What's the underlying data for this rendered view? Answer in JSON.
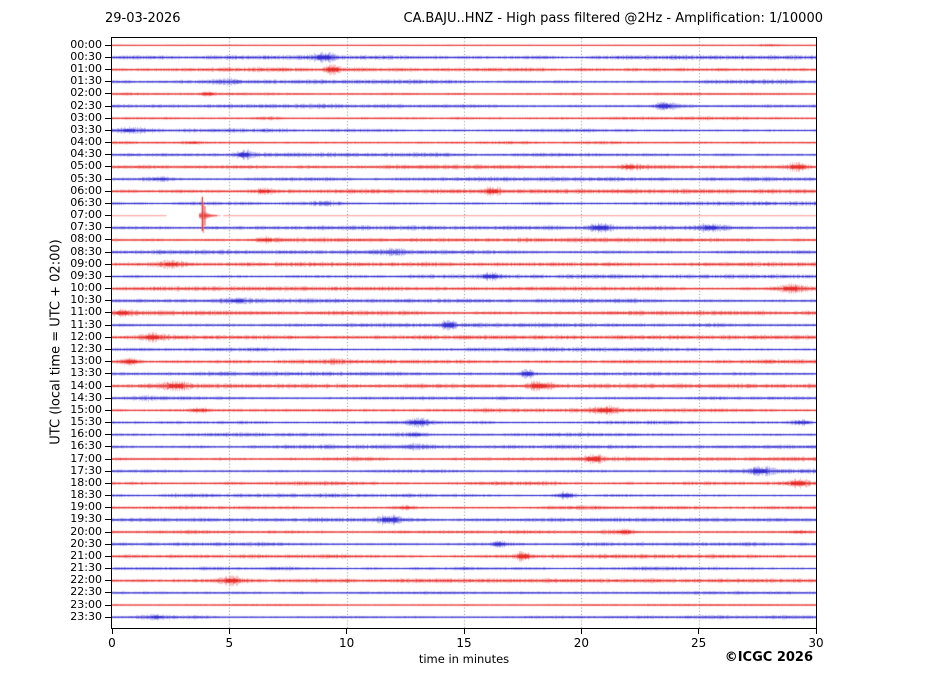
{
  "header": {
    "date": "29-03-2026",
    "title": "CA.BAJU..HNZ - High pass filtered @2Hz - Amplification: 1/10000"
  },
  "axes": {
    "y_label": "UTC (local time = UTC + 02:00)",
    "x_label": "time in minutes",
    "x_ticks": [
      "0",
      "5",
      "10",
      "15",
      "20",
      "25",
      "30"
    ]
  },
  "footer": {
    "copyright": "©ICGC 2026"
  },
  "chart_data": {
    "type": "helicorder-seismogram",
    "station": "CA.BAJU..HNZ",
    "filter": "High pass filtered @2Hz",
    "amplification": "1/10000",
    "date": "29-03-2026",
    "timezone_note": "UTC (local time = UTC + 02:00)",
    "minutes_per_line": 30,
    "x_range_minutes": [
      0,
      30
    ],
    "x_tick_interval_minutes": 5,
    "grid": "vertical dotted lines every 5 minutes",
    "colors": {
      "trace_red": "#e5201c",
      "trace_blue": "#2822ce",
      "event_pink": "#ffabab",
      "event_red": "#e63939",
      "grid": "#8a8a8a",
      "frame": "#000000",
      "background": "#ffffff"
    },
    "event": {
      "row_utc": "07:00",
      "start_minute": 3.7,
      "peak_minute": 3.85,
      "end_minute": 4.45,
      "description": "large clipped spike on the 07:00 trace extending into adjacent lines; rest of the line drawn flat in light pink"
    },
    "rows": [
      {
        "utc": "00:00",
        "color": "red",
        "level": 0.35
      },
      {
        "utc": "00:30",
        "color": "blue",
        "level": 1
      },
      {
        "utc": "01:00",
        "color": "red",
        "level": 1
      },
      {
        "utc": "01:30",
        "color": "blue",
        "level": 1
      },
      {
        "utc": "02:00",
        "color": "red",
        "level": 0.9
      },
      {
        "utc": "02:30",
        "color": "blue",
        "level": 1
      },
      {
        "utc": "03:00",
        "color": "red",
        "level": 0.8
      },
      {
        "utc": "03:30",
        "color": "blue",
        "level": 1
      },
      {
        "utc": "04:00",
        "color": "red",
        "level": 1
      },
      {
        "utc": "04:30",
        "color": "blue",
        "level": 1
      },
      {
        "utc": "05:00",
        "color": "red",
        "level": 1
      },
      {
        "utc": "05:30",
        "color": "blue",
        "level": 1
      },
      {
        "utc": "06:00",
        "color": "red",
        "level": 1.05
      },
      {
        "utc": "06:30",
        "color": "blue",
        "level": 1
      },
      {
        "utc": "07:00",
        "color": "red",
        "level": 0.3,
        "event": true
      },
      {
        "utc": "07:30",
        "color": "blue",
        "level": 1
      },
      {
        "utc": "08:00",
        "color": "red",
        "level": 1.05
      },
      {
        "utc": "08:30",
        "color": "blue",
        "level": 1
      },
      {
        "utc": "09:00",
        "color": "red",
        "level": 1
      },
      {
        "utc": "09:30",
        "color": "blue",
        "level": 1
      },
      {
        "utc": "10:00",
        "color": "red",
        "level": 1
      },
      {
        "utc": "10:30",
        "color": "blue",
        "level": 1
      },
      {
        "utc": "11:00",
        "color": "red",
        "level": 1.05
      },
      {
        "utc": "11:30",
        "color": "blue",
        "level": 1
      },
      {
        "utc": "12:00",
        "color": "red",
        "level": 1
      },
      {
        "utc": "12:30",
        "color": "blue",
        "level": 1
      },
      {
        "utc": "13:00",
        "color": "red",
        "level": 1.1
      },
      {
        "utc": "13:30",
        "color": "blue",
        "level": 1
      },
      {
        "utc": "14:00",
        "color": "red",
        "level": 1.1
      },
      {
        "utc": "14:30",
        "color": "blue",
        "level": 1
      },
      {
        "utc": "15:00",
        "color": "red",
        "level": 1
      },
      {
        "utc": "15:30",
        "color": "blue",
        "level": 1
      },
      {
        "utc": "16:00",
        "color": "blue",
        "level": 1
      },
      {
        "utc": "16:30",
        "color": "blue",
        "level": 1
      },
      {
        "utc": "17:00",
        "color": "red",
        "level": 1
      },
      {
        "utc": "17:30",
        "color": "blue",
        "level": 1
      },
      {
        "utc": "18:00",
        "color": "red",
        "level": 1.05
      },
      {
        "utc": "18:30",
        "color": "blue",
        "level": 1
      },
      {
        "utc": "19:00",
        "color": "red",
        "level": 1
      },
      {
        "utc": "19:30",
        "color": "blue",
        "level": 1
      },
      {
        "utc": "20:00",
        "color": "red",
        "level": 1
      },
      {
        "utc": "20:30",
        "color": "blue",
        "level": 1
      },
      {
        "utc": "21:00",
        "color": "red",
        "level": 1
      },
      {
        "utc": "21:30",
        "color": "blue",
        "level": 0.9
      },
      {
        "utc": "22:00",
        "color": "red",
        "level": 0.95
      },
      {
        "utc": "22:30",
        "color": "blue",
        "level": 0.75
      },
      {
        "utc": "23:00",
        "color": "red",
        "level": 0.45
      },
      {
        "utc": "23:30",
        "color": "blue",
        "level": 0.8
      }
    ],
    "notable_bursts": [
      {
        "row": "00:00",
        "minute": 28.0,
        "strength": 1.3
      },
      {
        "row": "00:30",
        "minute": 9.0,
        "strength": 2
      },
      {
        "row": "01:00",
        "minute": 9.4,
        "strength": 3
      },
      {
        "row": "01:30",
        "minute": 5.0,
        "strength": 1
      },
      {
        "row": "02:00",
        "minute": 4.1,
        "strength": 2.5
      },
      {
        "row": "02:30",
        "minute": 23.5,
        "strength": 2
      },
      {
        "row": "03:00",
        "minute": 6.7,
        "strength": 1
      },
      {
        "row": "03:30",
        "minute": 0.7,
        "strength": 1.5
      },
      {
        "row": "04:00",
        "minute": 3.4,
        "strength": 1.5
      },
      {
        "row": "04:30",
        "minute": 5.6,
        "strength": 2.5
      },
      {
        "row": "05:00",
        "minute": 22.0,
        "strength": 1.5
      },
      {
        "row": "05:00",
        "minute": 29.2,
        "strength": 2
      },
      {
        "row": "05:30",
        "minute": 2.0,
        "strength": 1.5
      },
      {
        "row": "06:00",
        "minute": 6.5,
        "strength": 1.5
      },
      {
        "row": "06:00",
        "minute": 16.2,
        "strength": 2.5
      },
      {
        "row": "06:30",
        "minute": 9.0,
        "strength": 1
      },
      {
        "row": "07:30",
        "minute": 20.8,
        "strength": 2
      },
      {
        "row": "07:30",
        "minute": 25.5,
        "strength": 1.5
      },
      {
        "row": "08:00",
        "minute": 6.5,
        "strength": 2
      },
      {
        "row": "08:30",
        "minute": 12.0,
        "strength": 1
      },
      {
        "row": "09:00",
        "minute": 2.5,
        "strength": 1.5
      },
      {
        "row": "09:30",
        "minute": 16.1,
        "strength": 2
      },
      {
        "row": "10:00",
        "minute": 28.9,
        "strength": 1.5
      },
      {
        "row": "10:30",
        "minute": 5.3,
        "strength": 1.5
      },
      {
        "row": "11:00",
        "minute": 0.4,
        "strength": 1.5
      },
      {
        "row": "11:30",
        "minute": 14.3,
        "strength": 2.5
      },
      {
        "row": "12:00",
        "minute": 1.7,
        "strength": 1.5
      },
      {
        "row": "12:30",
        "minute": 13.5,
        "strength": 1
      },
      {
        "row": "13:00",
        "minute": 0.8,
        "strength": 2
      },
      {
        "row": "13:00",
        "minute": 9.7,
        "strength": 1
      },
      {
        "row": "13:30",
        "minute": 17.7,
        "strength": 2.5
      },
      {
        "row": "14:00",
        "minute": 2.7,
        "strength": 2
      },
      {
        "row": "14:00",
        "minute": 18.2,
        "strength": 2
      },
      {
        "row": "14:30",
        "minute": 1.5,
        "strength": 1
      },
      {
        "row": "15:00",
        "minute": 3.7,
        "strength": 2
      },
      {
        "row": "15:00",
        "minute": 21.0,
        "strength": 2
      },
      {
        "row": "15:30",
        "minute": 13.0,
        "strength": 2
      },
      {
        "row": "15:30",
        "minute": 29.4,
        "strength": 2
      },
      {
        "row": "16:00",
        "minute": 12.9,
        "strength": 1.5
      },
      {
        "row": "16:30",
        "minute": 13.0,
        "strength": 1
      },
      {
        "row": "17:00",
        "minute": 20.5,
        "strength": 3
      },
      {
        "row": "17:30",
        "minute": 27.6,
        "strength": 2
      },
      {
        "row": "18:00",
        "minute": 29.2,
        "strength": 2
      },
      {
        "row": "18:30",
        "minute": 19.3,
        "strength": 2
      },
      {
        "row": "19:00",
        "minute": 12.5,
        "strength": 1.5
      },
      {
        "row": "19:30",
        "minute": 11.8,
        "strength": 2
      },
      {
        "row": "20:00",
        "minute": 21.8,
        "strength": 2
      },
      {
        "row": "20:00",
        "minute": 29.3,
        "strength": 1.5
      },
      {
        "row": "20:30",
        "minute": 16.5,
        "strength": 2.5
      },
      {
        "row": "21:00",
        "minute": 17.5,
        "strength": 2.5
      },
      {
        "row": "21:30",
        "minute": 7.0,
        "strength": 1
      },
      {
        "row": "22:00",
        "minute": 5.1,
        "strength": 1.5
      },
      {
        "row": "22:30",
        "minute": 2.0,
        "strength": 1
      },
      {
        "row": "23:30",
        "minute": 1.9,
        "strength": 1.5
      }
    ]
  }
}
